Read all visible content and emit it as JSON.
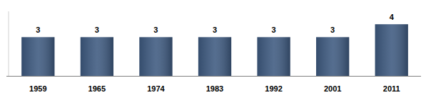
{
  "chart_data": {
    "type": "bar",
    "categories": [
      "1959",
      "1965",
      "1974",
      "1983",
      "1992",
      "2001",
      "2011"
    ],
    "values": [
      3,
      3,
      3,
      3,
      3,
      3,
      4
    ],
    "color": "#3e5a80",
    "ylim": [
      0,
      5
    ],
    "data_labels": true,
    "tick_labels": "x",
    "grid": false
  }
}
